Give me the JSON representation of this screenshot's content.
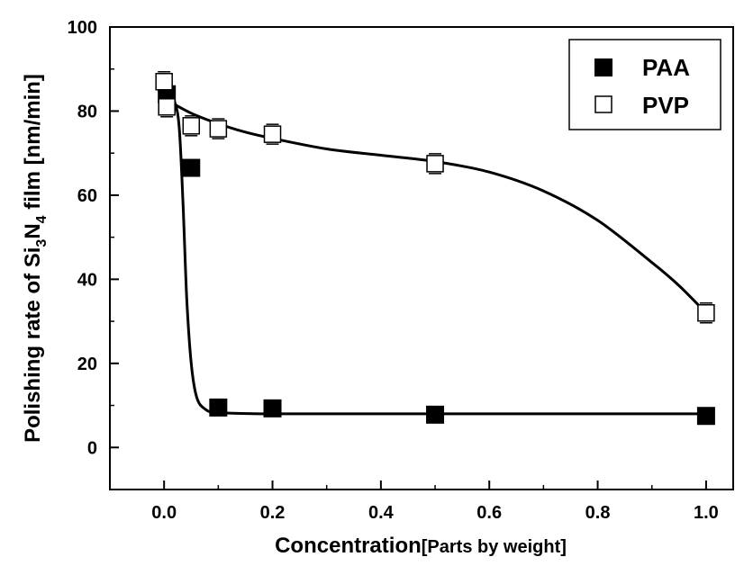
{
  "chart_data": {
    "type": "scatter",
    "xlabel": {
      "main": "Concentration",
      "unit": "[Parts by weight]"
    },
    "ylabel": {
      "prefix": "Polishing rate of Si",
      "sub1": "3",
      "mid": "N",
      "sub2": "4",
      "suffix": " film [nm/min]"
    },
    "xlim": [
      -0.1,
      1.05
    ],
    "ylim": [
      -10,
      100
    ],
    "xticks": [
      "0.0",
      "0.2",
      "0.4",
      "0.6",
      "0.8",
      "1.0"
    ],
    "yticks": [
      "0",
      "20",
      "40",
      "60",
      "80",
      "100"
    ],
    "legend_position": "top-right",
    "series": [
      {
        "name": "PAA",
        "marker": "filled-square",
        "color": "#000000",
        "x": [
          0.005,
          0.05,
          0.1,
          0.2,
          0.5,
          1.0
        ],
        "y": [
          84,
          66.5,
          9.5,
          9.3,
          7.8,
          7.5
        ],
        "fit_line": [
          [
            0.0,
            84.5
          ],
          [
            0.01,
            83.5
          ],
          [
            0.02,
            82
          ],
          [
            0.028,
            76
          ],
          [
            0.035,
            58
          ],
          [
            0.042,
            35
          ],
          [
            0.05,
            20
          ],
          [
            0.06,
            12
          ],
          [
            0.075,
            9.2
          ],
          [
            0.1,
            8.3
          ],
          [
            0.2,
            8.0
          ],
          [
            0.5,
            8.0
          ],
          [
            1.0,
            8.0
          ]
        ]
      },
      {
        "name": "PVP",
        "marker": "open-square",
        "color": "#000000",
        "x": [
          0.0,
          0.005,
          0.05,
          0.1,
          0.2,
          0.5,
          1.0
        ],
        "y": [
          87,
          81,
          76.5,
          75.8,
          74.5,
          67.5,
          32
        ],
        "fit_line": [
          [
            0.0,
            83
          ],
          [
            0.05,
            79.5
          ],
          [
            0.1,
            77
          ],
          [
            0.15,
            75
          ],
          [
            0.2,
            73.5
          ],
          [
            0.3,
            71
          ],
          [
            0.4,
            69.5
          ],
          [
            0.5,
            68
          ],
          [
            0.6,
            65.5
          ],
          [
            0.7,
            61
          ],
          [
            0.8,
            54
          ],
          [
            0.9,
            44
          ],
          [
            0.95,
            38.5
          ],
          [
            1.0,
            32
          ]
        ]
      }
    ]
  }
}
